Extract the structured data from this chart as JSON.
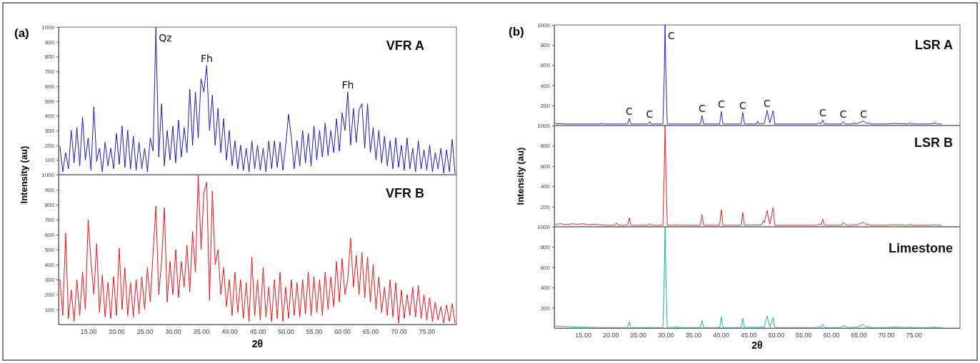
{
  "chart_data": [
    {
      "type": "line",
      "title": "(a)",
      "xlim": [
        9.75,
        80.25
      ],
      "ylim": [
        0,
        1000
      ],
      "yticks": [
        100,
        200,
        300,
        400,
        500,
        600,
        700,
        800,
        900,
        1000
      ],
      "tick_labels": "y",
      "x": [
        10,
        10.5,
        11,
        11.5,
        12,
        12.5,
        13,
        13.5,
        14,
        14.5,
        15,
        15.5,
        16,
        16.5,
        17,
        17.5,
        18,
        18.5,
        19,
        19.5,
        20,
        20.5,
        21,
        21.5,
        22,
        22.5,
        23,
        23.5,
        24,
        24.5,
        25,
        25.5,
        26,
        26.5,
        27,
        27.5,
        28,
        28.5,
        29,
        29.5,
        30,
        30.5,
        31,
        31.5,
        32,
        32.5,
        33,
        33.5,
        34,
        34.5,
        35,
        35.5,
        36,
        36.5,
        37,
        37.5,
        38,
        38.5,
        39,
        39.5,
        40,
        40.5,
        41,
        41.5,
        42,
        42.5,
        43,
        43.5,
        44,
        44.5,
        45,
        45.5,
        46,
        46.5,
        47,
        47.5,
        48,
        48.5,
        49,
        49.5,
        50,
        50.5,
        51,
        51.5,
        52,
        52.5,
        53,
        53.5,
        54,
        54.5,
        55,
        55.5,
        56,
        56.5,
        57,
        57.5,
        58,
        58.5,
        59,
        59.5,
        60,
        60.5,
        61,
        61.5,
        62,
        62.5,
        63,
        63.5,
        64,
        64.5,
        65,
        65.5,
        66,
        66.5,
        67,
        67.5,
        68,
        68.5,
        69,
        69.5,
        70,
        70.5,
        71,
        71.5,
        72,
        72.5,
        73,
        73.5,
        74,
        74.5,
        75,
        75.5,
        76,
        76.5,
        77,
        77.5,
        78,
        78.5,
        79,
        79.5,
        80
      ],
      "series": [
        {
          "name": "VFR A",
          "color": "#1c1cb8",
          "values": [
            190,
            20,
            150,
            40,
            300,
            80,
            320,
            60,
            390,
            100,
            250,
            30,
            460,
            90,
            180,
            20,
            220,
            60,
            180,
            40,
            280,
            70,
            330,
            50,
            300,
            40,
            260,
            30,
            220,
            40,
            180,
            20,
            250,
            160,
            1000,
            120,
            480,
            60,
            300,
            100,
            330,
            80,
            370,
            120,
            320,
            150,
            580,
            200,
            560,
            250,
            650,
            560,
            740,
            300,
            540,
            200,
            450,
            150,
            380,
            100,
            300,
            60,
            230,
            40,
            200,
            30,
            180,
            20,
            230,
            40,
            200,
            30,
            180,
            20,
            230,
            40,
            230,
            50,
            220,
            30,
            200,
            410,
            250,
            40,
            230,
            60,
            300,
            80,
            280,
            60,
            330,
            100,
            300,
            120,
            350,
            130,
            300,
            150,
            380,
            160,
            420,
            300,
            560,
            200,
            450,
            220,
            440,
            480,
            180,
            480,
            150,
            320,
            100,
            300,
            80,
            260,
            60,
            230,
            40,
            250,
            50,
            200,
            30,
            250,
            40,
            180,
            20,
            230,
            40,
            170,
            30,
            200,
            20,
            150,
            40,
            180,
            10,
            170,
            20,
            240,
            10
          ]
        }
      ],
      "annotations": [
        {
          "text": "Qz",
          "x": 27,
          "y": 1000
        },
        {
          "text": "Fh",
          "x": 36,
          "y": 740
        },
        {
          "text": "Fh",
          "x": 61,
          "y": 560
        }
      ]
    },
    {
      "type": "line",
      "xlim": [
        9.75,
        80.25
      ],
      "ylim": [
        0,
        1000
      ],
      "yticks": [
        100,
        200,
        300,
        400,
        500,
        600,
        700,
        800,
        900,
        1000
      ],
      "xticks": [
        {
          "value": 15,
          "label": "15.00"
        },
        {
          "value": 20,
          "label": "20.00"
        },
        {
          "value": 25,
          "label": "25.00"
        },
        {
          "value": 30,
          "label": "30.00"
        },
        {
          "value": 35,
          "label": "35.00"
        },
        {
          "value": 40,
          "label": "40.00"
        },
        {
          "value": 45,
          "label": "45.00"
        },
        {
          "value": 50,
          "label": "50.00"
        },
        {
          "value": 55,
          "label": "55.00"
        },
        {
          "value": 60,
          "label": "60.00"
        },
        {
          "value": 65,
          "label": "65.00"
        },
        {
          "value": 70,
          "label": "70.00"
        },
        {
          "value": 75,
          "label": "75.00"
        }
      ],
      "xlabel": "2θ",
      "ylabel": "Intensity (au)",
      "x": [
        10,
        10.5,
        11,
        11.5,
        12,
        12.5,
        13,
        13.5,
        14,
        14.5,
        15,
        15.5,
        16,
        16.5,
        17,
        17.5,
        18,
        18.5,
        19,
        19.5,
        20,
        20.5,
        21,
        21.5,
        22,
        22.5,
        23,
        23.5,
        24,
        24.5,
        25,
        25.5,
        26,
        26.5,
        27,
        27.5,
        28,
        28.5,
        29,
        29.5,
        30,
        30.5,
        31,
        31.5,
        32,
        32.5,
        33,
        33.5,
        34,
        34.5,
        35,
        35.5,
        36,
        36.5,
        37,
        37.5,
        38,
        38.5,
        39,
        39.5,
        40,
        40.5,
        41,
        41.5,
        42,
        42.5,
        43,
        43.5,
        44,
        44.5,
        45,
        45.5,
        46,
        46.5,
        47,
        47.5,
        48,
        48.5,
        49,
        49.5,
        50,
        50.5,
        51,
        51.5,
        52,
        52.5,
        53,
        53.5,
        54,
        54.5,
        55,
        55.5,
        56,
        56.5,
        57,
        57.5,
        58,
        58.5,
        59,
        59.5,
        60,
        60.5,
        61,
        61.5,
        62,
        62.5,
        63,
        63.5,
        64,
        64.5,
        65,
        65.5,
        66,
        66.5,
        67,
        67.5,
        68,
        68.5,
        69,
        69.5,
        70,
        70.5,
        71,
        71.5,
        72,
        72.5,
        73,
        73.5,
        74,
        74.5,
        75,
        75.5,
        76,
        76.5,
        77,
        77.5,
        78,
        78.5,
        79,
        79.5,
        80
      ],
      "series": [
        {
          "name": "VFR B",
          "color": "#e8141a",
          "values": [
            300,
            60,
            610,
            40,
            230,
            20,
            300,
            60,
            350,
            100,
            700,
            420,
            200,
            540,
            80,
            330,
            50,
            280,
            40,
            320,
            60,
            510,
            100,
            380,
            60,
            280,
            50,
            300,
            70,
            320,
            100,
            380,
            150,
            480,
            790,
            200,
            420,
            780,
            150,
            420,
            200,
            500,
            180,
            420,
            250,
            530,
            220,
            620,
            350,
            1000,
            500,
            880,
            950,
            160,
            890,
            400,
            500,
            200,
            380,
            120,
            300,
            60,
            350,
            80,
            300,
            40,
            280,
            20,
            450,
            60,
            300,
            30,
            380,
            50,
            250,
            20,
            300,
            40,
            350,
            20,
            250,
            40,
            300,
            60,
            280,
            50,
            300,
            70,
            350,
            60,
            320,
            80,
            300,
            60,
            350,
            100,
            320,
            120,
            420,
            150,
            440,
            200,
            300,
            575,
            250,
            460,
            200,
            480,
            180,
            450,
            150,
            400,
            100,
            320,
            80,
            250,
            60,
            300,
            50,
            280,
            10,
            230,
            40,
            200,
            60,
            250,
            50,
            260,
            40,
            200,
            30,
            180,
            20,
            150,
            30,
            120,
            10,
            130,
            20,
            140,
            10
          ]
        }
      ]
    },
    {
      "type": "line",
      "title": "(b)",
      "xlim": [
        9.8,
        83.4
      ],
      "ylim": [
        0,
        1000
      ],
      "yticks": [
        200,
        400,
        600,
        800,
        1000
      ],
      "tick_labels": "y",
      "series": [
        {
          "name": "LSR A",
          "color": "#2626cc",
          "x": [
            10,
            12,
            14,
            16,
            18,
            18.4,
            18.8,
            20,
            22,
            23.1,
            23.4,
            23.7,
            26.8,
            27.1,
            27.4,
            29.5,
            29.75,
            29.9,
            30.05,
            30.3,
            32,
            32.1,
            32.3,
            36.3,
            36.6,
            36.9,
            39.8,
            40.1,
            40.4,
            43.7,
            44,
            44.3,
            46.5,
            46.7,
            46.9,
            47.9,
            48.4,
            48.9,
            49.5,
            49.8,
            55,
            57.5,
            57.7,
            58.2,
            58.5,
            58.8,
            61.9,
            62.2,
            62.6,
            64,
            64.2,
            64.5,
            65.9,
            66.4,
            66.9,
            67.2,
            70,
            71.6,
            74,
            74.3,
            74.6,
            78,
            78.4,
            79,
            79.3,
            80
          ],
          "values": [
            20,
            15,
            15,
            15,
            15,
            20,
            15,
            15,
            15,
            15,
            70,
            15,
            15,
            40,
            15,
            15,
            500,
            1000,
            500,
            15,
            15,
            20,
            15,
            15,
            100,
            15,
            15,
            140,
            15,
            15,
            130,
            15,
            15,
            45,
            15,
            20,
            150,
            25,
            150,
            15,
            15,
            15,
            25,
            20,
            55,
            15,
            15,
            40,
            15,
            15,
            25,
            15,
            45,
            20,
            25,
            15,
            15,
            20,
            15,
            25,
            15,
            15,
            20,
            25,
            15,
            15
          ]
        }
      ],
      "annotations": [
        {
          "text": "C",
          "x": 23.4,
          "y": 70
        },
        {
          "text": "C",
          "x": 27.1,
          "y": 40
        },
        {
          "text": "C",
          "x": 29.9,
          "y": 1000
        },
        {
          "text": "C",
          "x": 36.6,
          "y": 100
        },
        {
          "text": "C",
          "x": 40.1,
          "y": 140
        },
        {
          "text": "C",
          "x": 44,
          "y": 130
        },
        {
          "text": "C",
          "x": 48.4,
          "y": 150
        },
        {
          "text": "C",
          "x": 58.5,
          "y": 55
        },
        {
          "text": "C",
          "x": 62.2,
          "y": 40
        },
        {
          "text": "C",
          "x": 65.9,
          "y": 45
        }
      ]
    },
    {
      "type": "line",
      "xlim": [
        9.8,
        83.4
      ],
      "ylim": [
        0,
        1000
      ],
      "yticks": [
        200,
        400,
        600,
        800,
        1000
      ],
      "tick_labels": "y",
      "ylabel": "Intensity (au)",
      "series": [
        {
          "name": "LSR B",
          "color": "#e02424",
          "x": [
            10,
            11,
            12,
            13,
            14,
            15,
            16,
            17,
            18,
            19,
            20.8,
            21.1,
            21.4,
            23.1,
            23.4,
            23.7,
            26.8,
            27.1,
            27.4,
            29.5,
            29.75,
            29.9,
            30.05,
            30.3,
            32,
            32.1,
            32.3,
            36.3,
            36.6,
            36.9,
            39.8,
            40.1,
            40.4,
            43.7,
            44,
            44.3,
            47.4,
            47.7,
            47.9,
            48.4,
            48.9,
            49.5,
            49.8,
            55,
            57.5,
            57.7,
            58.2,
            58.5,
            58.8,
            61.9,
            62.2,
            62.6,
            63,
            64,
            64.2,
            64.5,
            65.9,
            66.4,
            66.9,
            67.2,
            70,
            71.6,
            74,
            74.3,
            74.6,
            78,
            79,
            79.3,
            80
          ],
          "values": [
            25,
            30,
            20,
            30,
            25,
            30,
            20,
            25,
            20,
            15,
            15,
            40,
            15,
            15,
            90,
            15,
            15,
            30,
            15,
            15,
            550,
            1000,
            550,
            15,
            15,
            25,
            15,
            15,
            120,
            15,
            15,
            170,
            15,
            15,
            140,
            15,
            20,
            60,
            40,
            160,
            25,
            190,
            15,
            15,
            15,
            25,
            20,
            75,
            15,
            15,
            45,
            25,
            15,
            15,
            25,
            15,
            45,
            20,
            25,
            15,
            15,
            20,
            15,
            25,
            15,
            15,
            20,
            15,
            15
          ]
        }
      ]
    },
    {
      "type": "line",
      "xlim": [
        9.8,
        83.4
      ],
      "ylim": [
        0,
        1000
      ],
      "yticks": [
        200,
        400,
        600,
        800,
        1000
      ],
      "xticks": [
        {
          "value": 15,
          "label": "15.00"
        },
        {
          "value": 20,
          "label": "20.00"
        },
        {
          "value": 25,
          "label": "25.00"
        },
        {
          "value": 30,
          "label": "30.00"
        },
        {
          "value": 35,
          "label": "35.00"
        },
        {
          "value": 40,
          "label": "40.00"
        },
        {
          "value": 45,
          "label": "45.00"
        },
        {
          "value": 50,
          "label": "50.00"
        },
        {
          "value": 55,
          "label": "55.00"
        },
        {
          "value": 60,
          "label": "60.00"
        },
        {
          "value": 65,
          "label": "65.00"
        },
        {
          "value": 70,
          "label": "70.00"
        },
        {
          "value": 75,
          "label": "75.00"
        }
      ],
      "xlabel": "2θ",
      "series": [
        {
          "name": "Limestone",
          "color": "#1fb396",
          "x": [
            10,
            12,
            14,
            16,
            18,
            20,
            23.1,
            23.4,
            23.7,
            26.8,
            27.1,
            27.4,
            29.5,
            29.75,
            29.9,
            30.05,
            30.3,
            31.7,
            31.9,
            32.1,
            36.3,
            36.6,
            36.9,
            39.8,
            40.1,
            40.4,
            43.7,
            44,
            44.3,
            47.9,
            48.4,
            48.9,
            49.5,
            49.8,
            55,
            57.5,
            57.7,
            58.2,
            58.5,
            58.8,
            61.9,
            62.2,
            62.6,
            63,
            64,
            64.2,
            64.5,
            65.9,
            66.4,
            66.9,
            67.2,
            70,
            71.6,
            74,
            74.3,
            74.6,
            78,
            79,
            79.3,
            80
          ],
          "values": [
            20,
            15,
            10,
            8,
            5,
            5,
            5,
            60,
            5,
            5,
            8,
            5,
            5,
            500,
            1000,
            500,
            5,
            5,
            20,
            5,
            5,
            75,
            5,
            5,
            110,
            5,
            5,
            95,
            5,
            10,
            120,
            10,
            105,
            5,
            5,
            5,
            15,
            10,
            40,
            5,
            5,
            25,
            20,
            5,
            5,
            10,
            5,
            35,
            10,
            15,
            5,
            5,
            10,
            5,
            10,
            5,
            5,
            10,
            5,
            5
          ]
        }
      ]
    }
  ]
}
